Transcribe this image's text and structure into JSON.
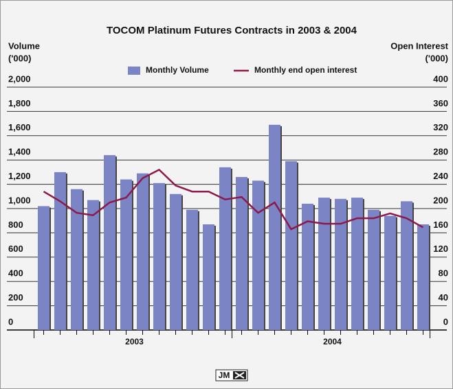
{
  "chart_data": {
    "type": "bar_line",
    "title": "TOCOM Platinum Futures Contracts in 2003 & 2004",
    "y_label": [
      "Volume",
      "('000)"
    ],
    "y2_label": [
      "Open Interest",
      "('000)"
    ],
    "categories": [
      null,
      null,
      null,
      null,
      null,
      null,
      null,
      null,
      null,
      null,
      null,
      null,
      null,
      null,
      null,
      null,
      null,
      null,
      null,
      null,
      null,
      null,
      null,
      null
    ],
    "x_groups": [
      {
        "label": "2003",
        "count": 12
      },
      {
        "label": "2004",
        "count": 12
      }
    ],
    "series": [
      {
        "name": "Monthly Volume",
        "type": "bar",
        "color": "#7b85c6",
        "values": [
          1020,
          1300,
          1160,
          1070,
          1440,
          1240,
          1290,
          1210,
          1120,
          990,
          870,
          1340,
          1260,
          1230,
          1690,
          1390,
          1040,
          1090,
          1080,
          1090,
          990,
          940,
          1060,
          870
        ]
      },
      {
        "name": "Monthly end open interest",
        "type": "line",
        "axis": "y2",
        "color": "#8b1a4a",
        "values": [
          228,
          212,
          193,
          189,
          210,
          218,
          250,
          264,
          238,
          228,
          228,
          215,
          219,
          193,
          210,
          166,
          179,
          175,
          175,
          184,
          184,
          192,
          184,
          169
        ]
      }
    ],
    "ylim": [
      0,
      2000
    ],
    "yticks": [
      0,
      200,
      400,
      600,
      800,
      {
        "value": 1000,
        "label": "1,000"
      },
      {
        "value": 1200,
        "label": "1,200"
      },
      {
        "value": 1400,
        "label": "1,400"
      },
      {
        "value": 1600,
        "label": "1,600"
      },
      {
        "value": 1800,
        "label": "1,800"
      },
      {
        "value": 2000,
        "label": "2,000"
      }
    ],
    "y2lim": [
      0,
      400
    ],
    "y2ticks": [
      0,
      40,
      80,
      120,
      160,
      200,
      240,
      280,
      320,
      360,
      400
    ],
    "grid": true,
    "legend": "top",
    "logo": "JM"
  }
}
